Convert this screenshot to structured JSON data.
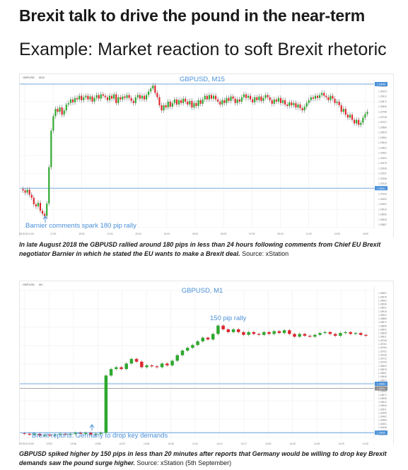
{
  "header": {
    "title": "Brexit talk to drive the pound in the near-term",
    "subtitle": "Example: Market reaction to soft Brexit rhetoric"
  },
  "colors": {
    "up": "#2ea82e",
    "down": "#e0262d",
    "accent": "#4a90d9",
    "grid": "#eeeeee"
  },
  "charts": [
    {
      "symbol": "GBPUSD",
      "timeframe": "M15",
      "chart_title": "GBPUSD, M15",
      "annotation": "Barnier comments spark 180 pip rally",
      "caption_bold": "In late August 2018 the GBPUSD rallied around 180 pips in less than 24 hours following comments from Chief EU Brexit negotiator Barnier in which he stated the EU wants to make a Brexit deal.",
      "caption_plain": " Source: xStation"
    },
    {
      "symbol": "GBPUSD",
      "timeframe": "M1",
      "chart_title": "GBPUSD, M1",
      "annotation": "Brexit reports: Germany to drop key demands",
      "annotation2": "150 pip rally",
      "caption_bold": "GBPUSD spiked higher by 150 pips in less than 20 minutes after reports that Germany would be willing to drop key Brexit demands saw the pound surge higher.",
      "caption_plain": " Source: xStation (5th September)"
    }
  ],
  "chart_data": [
    {
      "type": "candlestick",
      "title": "GBPUSD, M15",
      "x_ticks": [
        "29.08.2018 11:00",
        "17:00",
        "19:00",
        "21:00",
        "23:00",
        "01:00",
        "03:00",
        "05:00",
        "07:00",
        "09:00",
        "11:00",
        "13:00",
        "15:00"
      ],
      "ylim": [
        1.2807,
        1.3005
      ],
      "y_ticks": [
        "1.30043",
        "1.30003",
        "1.29912",
        "1.29871",
        "1.29830",
        "1.29789",
        "1.29748",
        "1.29707",
        "1.29666",
        "1.29625",
        "1.29584",
        "1.29543",
        "1.29502",
        "1.29461",
        "1.29420",
        "1.29379",
        "1.29338",
        "1.29297",
        "1.29256",
        "1.29215",
        "1.29174",
        "1.29133",
        "1.29092",
        "1.29051",
        "1.29010",
        "1.28969",
        "1.28928",
        "1.28887"
      ],
      "levels": {
        "high": "1.30040",
        "low": "1.28611"
      },
      "close": [
        1.2858,
        1.2855,
        1.2859,
        1.2852,
        1.2848,
        1.2839,
        1.2836,
        1.2841,
        1.283,
        1.2826,
        1.2823,
        1.284,
        1.289,
        1.294,
        1.296,
        1.297,
        1.2966,
        1.2972,
        1.2962,
        1.2968,
        1.2976,
        1.2978,
        1.2983,
        1.2979,
        1.2985,
        1.2983,
        1.2988,
        1.2982,
        1.2986,
        1.2988,
        1.2983,
        1.2987,
        1.298,
        1.2985,
        1.2989,
        1.2984,
        1.299,
        1.2988,
        1.2986,
        1.2982,
        1.2988,
        1.2984,
        1.299,
        1.2978,
        1.2986,
        1.2983,
        1.2987,
        1.2985,
        1.2989,
        1.2985,
        1.2981,
        1.2978,
        1.2986,
        1.2989,
        1.2984,
        1.2988,
        1.2983,
        1.2989,
        1.2994,
        1.2998,
        1.3002,
        1.2992,
        1.2986,
        1.2975,
        1.2968,
        1.2975,
        1.2972,
        1.298,
        1.2973,
        1.2978,
        1.2983,
        1.2976,
        1.2982,
        1.2978,
        1.2984,
        1.298,
        1.2976,
        1.2981,
        1.2972,
        1.2978,
        1.2974,
        1.2982,
        1.2977,
        1.2983,
        1.2988,
        1.2983,
        1.2989,
        1.2984,
        1.2988,
        1.2983,
        1.298,
        1.2976,
        1.2982,
        1.2978,
        1.2985,
        1.2981,
        1.2987,
        1.2984,
        1.2978,
        1.2983,
        1.298,
        1.2986,
        1.299,
        1.2985,
        1.2988,
        1.2983,
        1.2979,
        1.2986,
        1.2982,
        1.2987,
        1.2981,
        1.2985,
        1.2989,
        1.2986,
        1.2982,
        1.2977,
        1.2983,
        1.298,
        1.2985,
        1.2978,
        1.2982,
        1.2976,
        1.2974,
        1.2979,
        1.2975,
        1.2978,
        1.2972,
        1.2976,
        1.2971,
        1.2968,
        1.2973,
        1.2978,
        1.2982,
        1.2986,
        1.2984,
        1.2988,
        1.2985,
        1.2989,
        1.2992,
        1.2988,
        1.2986,
        1.2982,
        1.2988,
        1.2984,
        1.2978,
        1.298,
        1.2975,
        1.2966,
        1.297,
        1.2962,
        1.2958,
        1.2962,
        1.2955,
        1.295,
        1.2955,
        1.2948,
        1.2951,
        1.2958,
        1.2963,
        1.2966
      ]
    },
    {
      "type": "candlestick",
      "title": "GBPUSD, M1",
      "x_ticks": [
        "05.09.2018 13:50",
        "13:53",
        "13:56",
        "13:59",
        "14:02",
        "14:05",
        "14:08",
        "14:11",
        "14:14",
        "14:17",
        "14:20",
        "14:23",
        "14:26",
        "14:29",
        "14:32"
      ],
      "ylim": [
        1.2838,
        1.2997
      ],
      "y_ticks": [
        "1.28991",
        "1.28976",
        "1.28961",
        "1.28946",
        "1.28931",
        "1.28916",
        "1.28901",
        "1.28886",
        "1.28871",
        "1.28856",
        "1.28841",
        "1.28826",
        "1.28811",
        "1.28796",
        "1.28781",
        "1.28766",
        "1.28751",
        "1.28736",
        "1.28721",
        "1.28706",
        "1.28691",
        "1.28676",
        "1.28661",
        "1.28646",
        "1.28631",
        "1.28616",
        "1.28601",
        "1.28586",
        "1.28571",
        "1.28556",
        "1.28541",
        "1.28526",
        "1.28511",
        "1.28496",
        "1.28481",
        "1.28466",
        "1.28451",
        "1.28436",
        "1.28421",
        "1.28406"
      ],
      "levels": {
        "high": "1.28961",
        "mid": "1.28911",
        "low": "1.28432"
      },
      "close": [
        1.2842,
        1.2841,
        1.2842,
        1.284,
        1.2841,
        1.284,
        1.2841,
        1.2842,
        1.2841,
        1.2842,
        1.2843,
        1.2842,
        1.2843,
        1.2841,
        1.2842,
        1.2843,
        1.2905,
        1.2912,
        1.2914,
        1.2912,
        1.2918,
        1.2923,
        1.292,
        1.2914,
        1.2916,
        1.2915,
        1.2914,
        1.2918,
        1.2916,
        1.2921,
        1.2927,
        1.2932,
        1.2935,
        1.2938,
        1.2942,
        1.2946,
        1.2944,
        1.295,
        1.2959,
        1.2955,
        1.2952,
        1.2955,
        1.2952,
        1.2949,
        1.2952,
        1.295,
        1.2949,
        1.2952,
        1.295,
        1.2953,
        1.2951,
        1.2954,
        1.295,
        1.2947,
        1.295,
        1.2948,
        1.2947,
        1.2949,
        1.2951,
        1.2952,
        1.295,
        1.2948,
        1.2951,
        1.2952,
        1.295,
        1.2951,
        1.2949,
        1.2948
      ]
    }
  ]
}
